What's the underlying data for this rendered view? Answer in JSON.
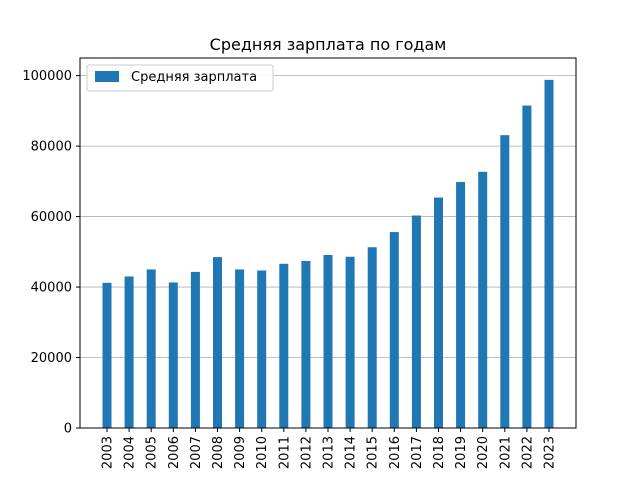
{
  "chart_data": {
    "type": "bar",
    "title": "Средняя зарплата по годам",
    "xlabel": "",
    "ylabel": "",
    "categories": [
      "2003",
      "2004",
      "2005",
      "2006",
      "2007",
      "2008",
      "2009",
      "2010",
      "2011",
      "2012",
      "2013",
      "2014",
      "2015",
      "2016",
      "2017",
      "2018",
      "2019",
      "2020",
      "2021",
      "2022",
      "2023"
    ],
    "series": [
      {
        "name": "Средняя зарплата",
        "color": "#1f77b4",
        "values": [
          41200,
          43000,
          45000,
          41300,
          44300,
          48500,
          45000,
          44700,
          46600,
          47400,
          49100,
          48600,
          51300,
          55600,
          60300,
          65400,
          69800,
          72700,
          83100,
          91500,
          98800
        ]
      }
    ],
    "ylim": [
      0,
      105000
    ],
    "yticks": [
      0,
      20000,
      40000,
      60000,
      80000,
      100000
    ],
    "grid": "y",
    "legend_position": "top-left"
  }
}
